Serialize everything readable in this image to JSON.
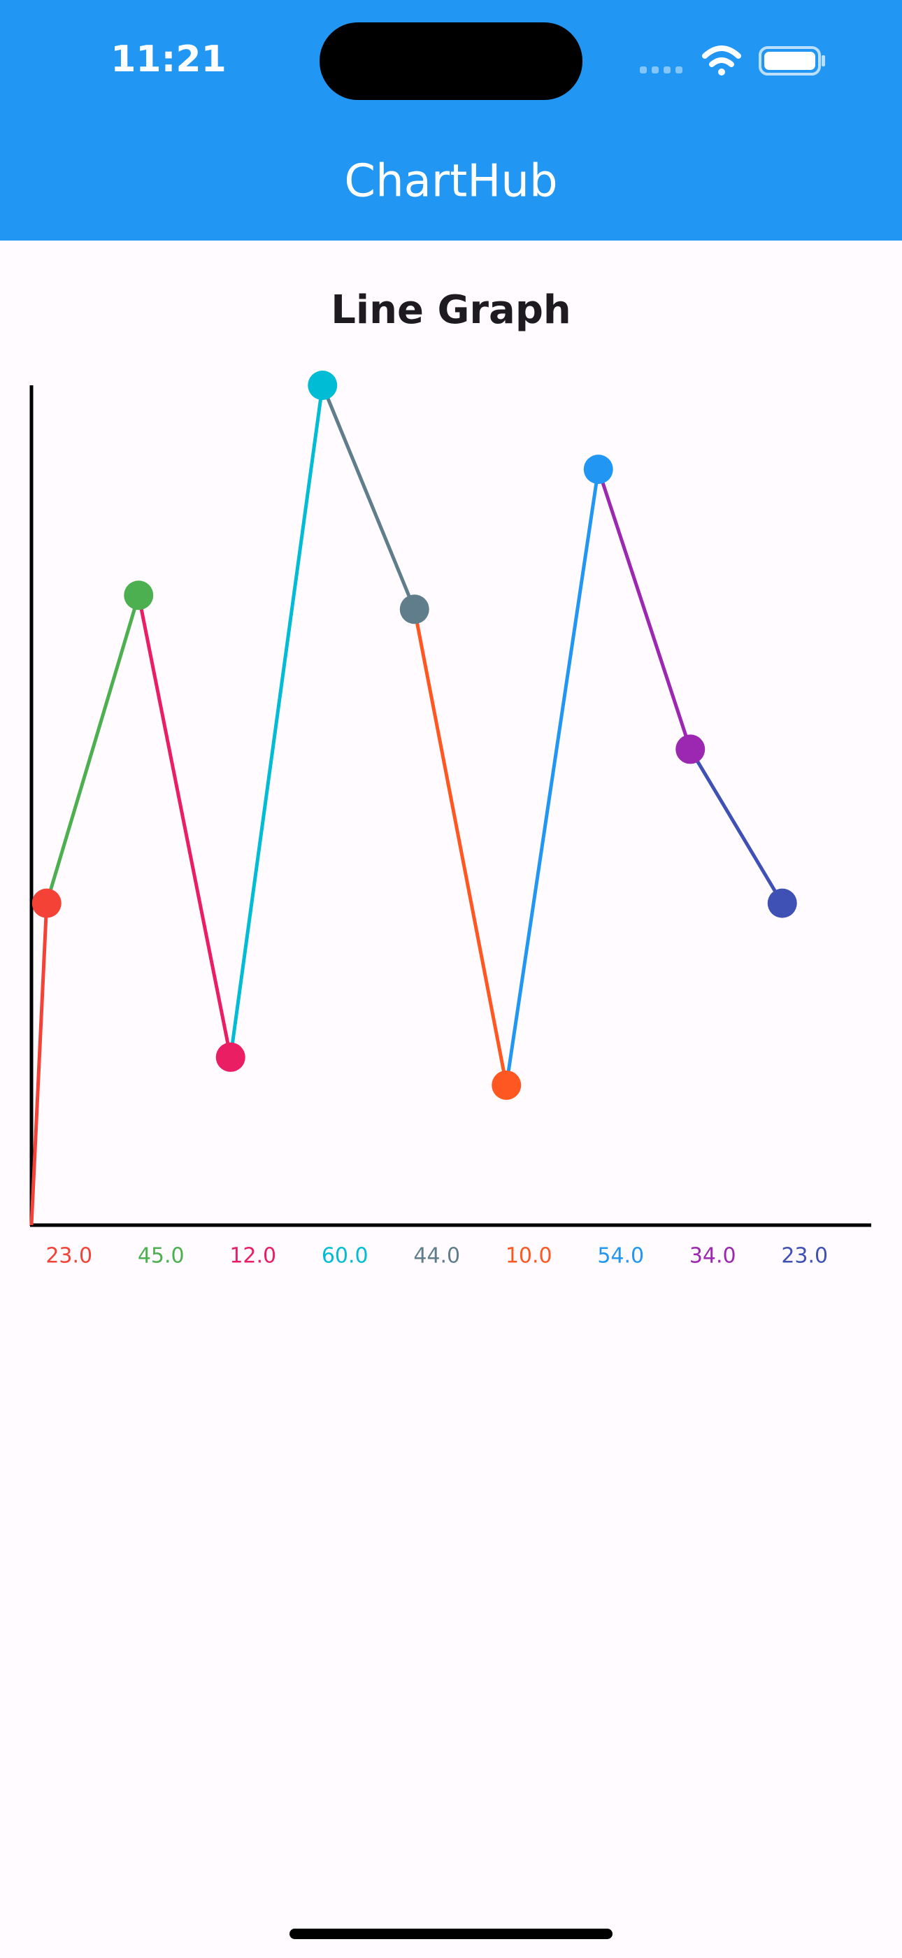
{
  "status_bar": {
    "time": "11:21"
  },
  "app_bar": {
    "title": "ChartHub"
  },
  "chart_data": {
    "type": "line",
    "title": "Line Graph",
    "values": [
      23,
      45,
      12,
      60,
      44,
      10,
      54,
      34,
      23
    ],
    "value_labels": [
      "23.0",
      "45.0",
      "12.0",
      "60.0",
      "44.0",
      "10.0",
      "54.0",
      "34.0",
      "23.0"
    ],
    "colors": [
      "#F44336",
      "#4CAF50",
      "#E91E63",
      "#00BCD4",
      "#607D8B",
      "#FF5722",
      "#2196F3",
      "#9C27B0",
      "#3F51B5"
    ],
    "ylim": [
      0,
      60
    ]
  }
}
